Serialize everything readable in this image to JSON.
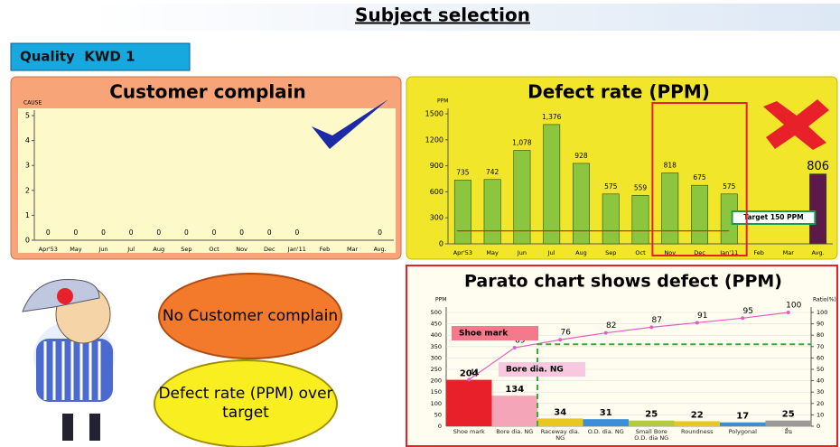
{
  "header": {
    "title": "Subject selection",
    "badge": "Quality  KWD 1"
  },
  "chart_data": [
    {
      "type": "bar",
      "title": "Customer complain",
      "ylabel": "CAUSE",
      "categories": [
        "Apr'53",
        "May",
        "Jun",
        "Jul",
        "Aug",
        "Sep",
        "Oct",
        "Nov",
        "Dec",
        "Jan'11",
        "Feb",
        "Mar",
        "Avg."
      ],
      "values": [
        0,
        0,
        0,
        0,
        0,
        0,
        0,
        0,
        0,
        0,
        null,
        null,
        0
      ],
      "color": "#8cc63f",
      "ylim": [
        0,
        5
      ],
      "yticks": [
        0,
        1,
        2,
        3,
        4,
        5
      ]
    },
    {
      "type": "bar",
      "title": "Defect rate (PPM)",
      "ylabel": "PPM",
      "categories": [
        "Apr'53",
        "May",
        "Jun",
        "Jul",
        "Aug",
        "Sep",
        "Oct",
        "Nov",
        "Dec",
        "Jan'11",
        "Feb",
        "Mar",
        "Avg."
      ],
      "values": [
        735,
        742,
        1078,
        1376,
        928,
        575,
        559,
        818,
        675,
        575,
        null,
        null,
        806
      ],
      "value_labels": [
        "735",
        "742",
        "1,078",
        "1,376",
        "928",
        "575",
        "559",
        "818",
        "675",
        "575",
        null,
        null,
        "806"
      ],
      "colors": [
        "#8cc63f",
        "#8cc63f",
        "#8cc63f",
        "#8cc63f",
        "#8cc63f",
        "#8cc63f",
        "#8cc63f",
        "#8cc63f",
        "#8cc63f",
        "#8cc63f",
        null,
        null,
        "#5b1a4a"
      ],
      "ylim": [
        0,
        1500
      ],
      "yticks": [
        0,
        300,
        600,
        900,
        1200,
        1500
      ],
      "target": {
        "value": 150,
        "label": "Target 150 PPM",
        "color": "#e8202a"
      }
    },
    {
      "type": "pareto",
      "title": "Parato chart shows defect (PPM)",
      "ylabel": "PPM",
      "y2label": "Ratio(%)",
      "categories": [
        "Shoe mark",
        "Bore dia. NG",
        "Raceway dia. NG",
        "O.D. dia. NG",
        "Small Bore O.D. dia NG",
        "Roundness",
        "Polygonal",
        "อื่น"
      ],
      "values": [
        204,
        134,
        34,
        31,
        25,
        22,
        17,
        25
      ],
      "colors": [
        "#e8202a",
        "#f4a6b8",
        "#e8c81e",
        "#3a8fd8",
        "#b5cc3a",
        "#e8c81e",
        "#3a8fd8",
        "#9a9a9a"
      ],
      "cumulative": {
        "axis": "y2",
        "values": [
          41,
          69,
          76,
          82,
          87,
          91,
          95,
          100
        ],
        "color": "#e060c0"
      },
      "reference": {
        "axis": "y2",
        "value": 72,
        "color": "#3aa83a"
      },
      "annotations": [
        "Shoe mark",
        "Bore dia. NG"
      ],
      "ylim": [
        0,
        500
      ],
      "yticks": [
        0,
        50,
        100,
        150,
        200,
        250,
        300,
        350,
        400,
        450,
        500
      ],
      "y2lim": [
        0,
        100
      ],
      "y2ticks": [
        0,
        10,
        20,
        30,
        40,
        50,
        60,
        70,
        80,
        90,
        100
      ],
      "grid": true
    }
  ],
  "bubbles": [
    "No Customer complain",
    "Defect rate (PPM) over target"
  ]
}
